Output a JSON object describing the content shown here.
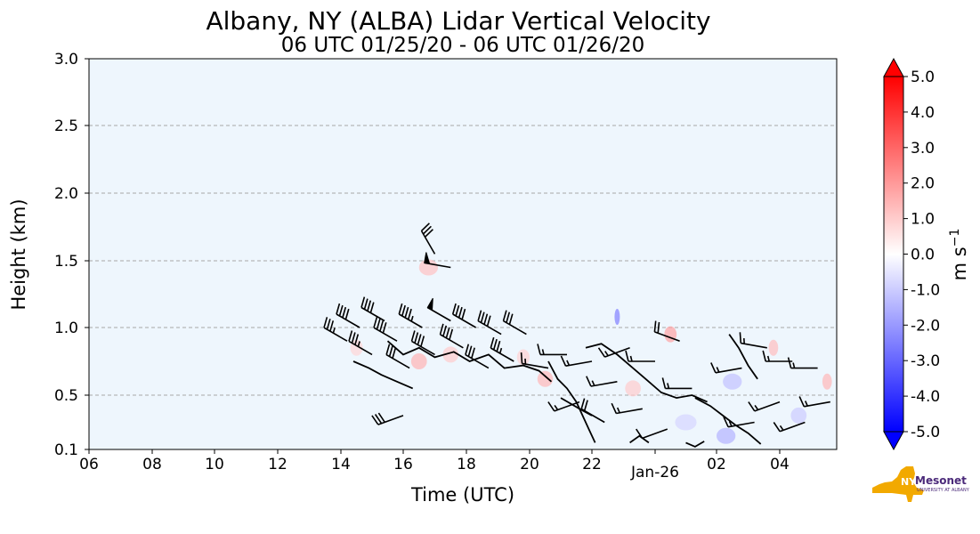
{
  "chart_data": {
    "type": "heatmap",
    "title": "Albany, NY (ALBA) Lidar Vertical Velocity",
    "subtitle": "06 UTC 01/25/20 - 06 UTC 01/26/20",
    "xlabel": "Time (UTC)",
    "ylabel": "Height (km)",
    "x_ticks": [
      "06",
      "08",
      "10",
      "12",
      "14",
      "16",
      "18",
      "20",
      "22",
      "Jan-26",
      "02",
      "04"
    ],
    "x_tick_hours": [
      6,
      8,
      10,
      12,
      14,
      16,
      18,
      20,
      22,
      24,
      26,
      28
    ],
    "xlim_hours": [
      6,
      29.8
    ],
    "y_ticks": [
      "0.1",
      "0.5",
      "1.0",
      "1.5",
      "2.0",
      "2.5",
      "3.0"
    ],
    "y_tick_values": [
      0.1,
      0.5,
      1.0,
      1.5,
      2.0,
      2.5,
      3.0
    ],
    "ylim": [
      0.1,
      3.0
    ],
    "grid": "horizontal dashed",
    "background_color": "#eef6fd",
    "colorbar": {
      "label": "m s",
      "label_exponent": "−1",
      "ticks": [
        "5.0",
        "4.0",
        "3.0",
        "2.0",
        "1.0",
        "0.0",
        "-1.0",
        "-2.0",
        "-3.0",
        "-4.0",
        "-5.0"
      ],
      "range": [
        -5.0,
        5.0
      ],
      "colors": {
        "min": "#0000ff",
        "mid": "#ffffff",
        "max": "#ff0000"
      }
    },
    "velocity_patches": [
      {
        "t": 16.8,
        "h": 1.45,
        "w": 0.6,
        "v": 1.2
      },
      {
        "t": 14.5,
        "h": 0.85,
        "w": 0.4,
        "v": 0.8
      },
      {
        "t": 16.5,
        "h": 0.75,
        "w": 0.5,
        "v": 1.5
      },
      {
        "t": 17.5,
        "h": 0.8,
        "w": 0.5,
        "v": 1.0
      },
      {
        "t": 19.8,
        "h": 0.78,
        "w": 0.4,
        "v": 0.9
      },
      {
        "t": 20.5,
        "h": 0.62,
        "w": 0.5,
        "v": 1.4
      },
      {
        "t": 22.8,
        "h": 1.08,
        "w": 0.15,
        "v": -2.5
      },
      {
        "t": 23.3,
        "h": 0.55,
        "w": 0.5,
        "v": 1.0
      },
      {
        "t": 24.5,
        "h": 0.95,
        "w": 0.4,
        "v": 1.8
      },
      {
        "t": 25.0,
        "h": 0.3,
        "w": 0.7,
        "v": -0.8
      },
      {
        "t": 26.5,
        "h": 0.6,
        "w": 0.6,
        "v": -1.2
      },
      {
        "t": 26.3,
        "h": 0.2,
        "w": 0.6,
        "v": -1.5
      },
      {
        "t": 27.8,
        "h": 0.85,
        "w": 0.3,
        "v": 1.3
      },
      {
        "t": 28.6,
        "h": 0.35,
        "w": 0.5,
        "v": -1.0
      },
      {
        "t": 29.5,
        "h": 0.6,
        "w": 0.3,
        "v": 1.4
      }
    ],
    "wind_barbs": [
      {
        "t": 14.2,
        "h": 0.9,
        "dir": 300,
        "spd": 35
      },
      {
        "t": 14.6,
        "h": 1.0,
        "dir": 300,
        "spd": 40
      },
      {
        "t": 15.0,
        "h": 0.8,
        "dir": 300,
        "spd": 35
      },
      {
        "t": 15.4,
        "h": 1.05,
        "dir": 300,
        "spd": 40
      },
      {
        "t": 15.8,
        "h": 0.9,
        "dir": 300,
        "spd": 40
      },
      {
        "t": 16.2,
        "h": 0.7,
        "dir": 300,
        "spd": 30
      },
      {
        "t": 16.0,
        "h": 0.35,
        "dir": 250,
        "spd": 30
      },
      {
        "t": 16.6,
        "h": 1.0,
        "dir": 300,
        "spd": 45
      },
      {
        "t": 17.0,
        "h": 1.55,
        "dir": 330,
        "spd": 30
      },
      {
        "t": 17.0,
        "h": 0.8,
        "dir": 300,
        "spd": 40
      },
      {
        "t": 17.5,
        "h": 1.45,
        "dir": 280,
        "spd": 50
      },
      {
        "t": 17.5,
        "h": 1.05,
        "dir": 300,
        "spd": 50
      },
      {
        "t": 17.9,
        "h": 0.85,
        "dir": 300,
        "spd": 40
      },
      {
        "t": 18.3,
        "h": 1.0,
        "dir": 300,
        "spd": 40
      },
      {
        "t": 18.7,
        "h": 0.7,
        "dir": 300,
        "spd": 30
      },
      {
        "t": 19.1,
        "h": 0.95,
        "dir": 300,
        "spd": 40
      },
      {
        "t": 19.5,
        "h": 0.75,
        "dir": 300,
        "spd": 35
      },
      {
        "t": 19.9,
        "h": 0.95,
        "dir": 300,
        "spd": 30
      },
      {
        "t": 20.6,
        "h": 0.7,
        "dir": 280,
        "spd": 15
      },
      {
        "t": 21.2,
        "h": 0.8,
        "dir": 270,
        "spd": 15
      },
      {
        "t": 21.6,
        "h": 0.45,
        "dir": 250,
        "spd": 15
      },
      {
        "t": 22.0,
        "h": 0.75,
        "dir": 260,
        "spd": 15
      },
      {
        "t": 22.4,
        "h": 0.3,
        "dir": 300,
        "spd": 20
      },
      {
        "t": 22.8,
        "h": 0.6,
        "dir": 260,
        "spd": 15
      },
      {
        "t": 23.2,
        "h": 0.85,
        "dir": 250,
        "spd": 15
      },
      {
        "t": 23.6,
        "h": 0.4,
        "dir": 260,
        "spd": 15
      },
      {
        "t": 24.0,
        "h": 0.75,
        "dir": 270,
        "spd": 15
      },
      {
        "t": 24.4,
        "h": 0.25,
        "dir": 250,
        "spd": 10
      },
      {
        "t": 24.8,
        "h": 0.9,
        "dir": 290,
        "spd": 20
      },
      {
        "t": 25.2,
        "h": 0.55,
        "dir": 270,
        "spd": 15
      },
      {
        "t": 26.8,
        "h": 0.7,
        "dir": 260,
        "spd": 15
      },
      {
        "t": 27.2,
        "h": 0.3,
        "dir": 260,
        "spd": 15
      },
      {
        "t": 27.6,
        "h": 0.85,
        "dir": 280,
        "spd": 15
      },
      {
        "t": 28.0,
        "h": 0.45,
        "dir": 250,
        "spd": 15
      },
      {
        "t": 28.4,
        "h": 0.75,
        "dir": 270,
        "spd": 15
      },
      {
        "t": 28.8,
        "h": 0.3,
        "dir": 250,
        "spd": 15
      },
      {
        "t": 29.2,
        "h": 0.7,
        "dir": 270,
        "spd": 15
      },
      {
        "t": 29.6,
        "h": 0.45,
        "dir": 260,
        "spd": 15
      }
    ],
    "contours": [
      [
        [
          14.4,
          0.75
        ],
        [
          14.9,
          0.7
        ],
        [
          15.3,
          0.65
        ],
        [
          15.8,
          0.6
        ],
        [
          16.3,
          0.55
        ]
      ],
      [
        [
          15.5,
          0.9
        ],
        [
          16.0,
          0.8
        ],
        [
          16.5,
          0.85
        ],
        [
          17.0,
          0.78
        ],
        [
          17.6,
          0.82
        ],
        [
          18.1,
          0.75
        ],
        [
          18.7,
          0.8
        ],
        [
          19.2,
          0.7
        ],
        [
          19.8,
          0.72
        ],
        [
          20.3,
          0.68
        ],
        [
          20.7,
          0.6
        ]
      ],
      [
        [
          20.6,
          0.75
        ],
        [
          20.9,
          0.62
        ],
        [
          21.2,
          0.55
        ],
        [
          21.5,
          0.45
        ],
        [
          21.7,
          0.35
        ],
        [
          21.9,
          0.25
        ],
        [
          22.1,
          0.15
        ]
      ],
      [
        [
          21.8,
          0.85
        ],
        [
          22.3,
          0.88
        ],
        [
          22.8,
          0.8
        ],
        [
          23.2,
          0.72
        ],
        [
          23.7,
          0.62
        ],
        [
          24.2,
          0.52
        ],
        [
          24.7,
          0.48
        ],
        [
          25.2,
          0.5
        ],
        [
          25.7,
          0.45
        ]
      ],
      [
        [
          21.0,
          0.48
        ],
        [
          21.6,
          0.4
        ],
        [
          22.0,
          0.35
        ]
      ],
      [
        [
          25.3,
          0.48
        ],
        [
          25.8,
          0.42
        ],
        [
          26.2,
          0.35
        ],
        [
          26.6,
          0.28
        ],
        [
          27.0,
          0.22
        ],
        [
          27.4,
          0.14
        ]
      ],
      [
        [
          26.4,
          0.95
        ],
        [
          26.7,
          0.85
        ],
        [
          27.0,
          0.72
        ],
        [
          27.3,
          0.62
        ]
      ],
      [
        [
          23.2,
          0.15
        ],
        [
          23.5,
          0.2
        ],
        [
          23.8,
          0.15
        ]
      ],
      [
        [
          25.0,
          0.15
        ],
        [
          25.3,
          0.12
        ],
        [
          25.6,
          0.16
        ]
      ]
    ]
  }
}
